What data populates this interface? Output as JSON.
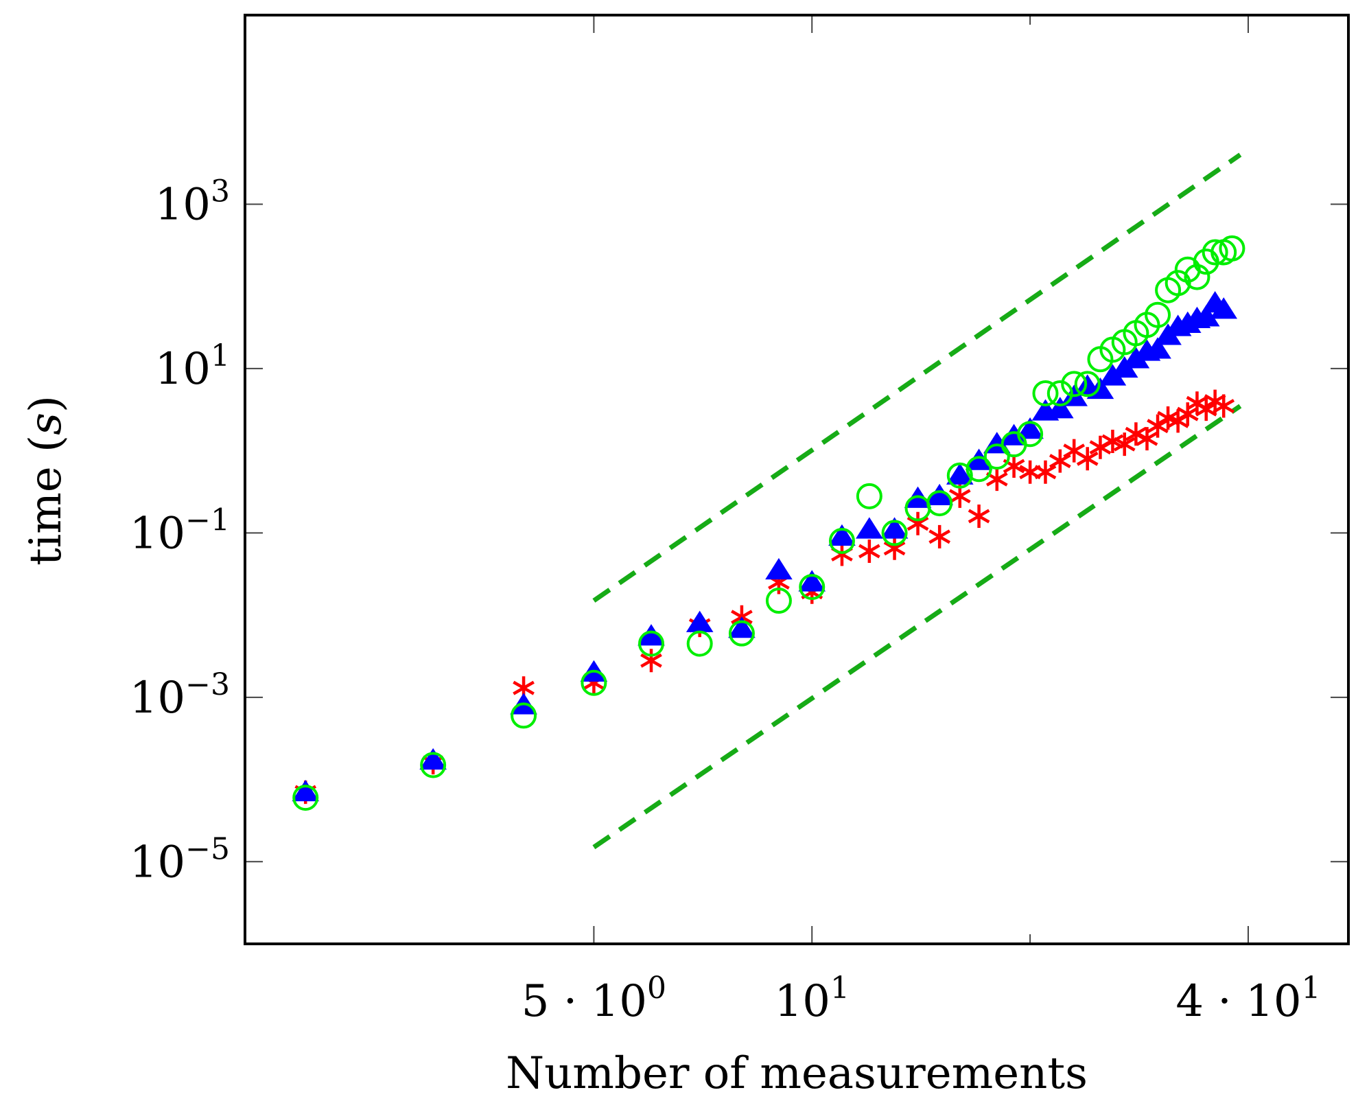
{
  "chart_data": {
    "type": "scatter",
    "title": "",
    "xlabel": "Number of measurements",
    "ylabel_main": "time (",
    "ylabel_var": "s",
    "ylabel_close": ")",
    "x_scale": "log",
    "y_scale": "log",
    "xlim": [
      1.65,
      55
    ],
    "ylim": [
      1e-06,
      200000
    ],
    "grid": false,
    "x_ticks": [
      {
        "value": 5,
        "mantissa": "5 · ",
        "base": "10",
        "exp": "0"
      },
      {
        "value": 10,
        "mantissa": "",
        "base": "10",
        "exp": "1"
      },
      {
        "value": 40,
        "mantissa": "4 · ",
        "base": "10",
        "exp": "1"
      }
    ],
    "y_ticks": [
      {
        "value": 1e-05,
        "base": "10",
        "exp": "−5"
      },
      {
        "value": 0.001,
        "base": "10",
        "exp": "−3"
      },
      {
        "value": 0.1,
        "base": "10",
        "exp": "−1"
      },
      {
        "value": 10,
        "base": "10",
        "exp": "1"
      },
      {
        "value": 1000,
        "base": "10",
        "exp": "3"
      }
    ],
    "minor_x_ticks": [
      20
    ],
    "series": [
      {
        "name": "red-stars",
        "marker": "star",
        "color": "#ff0000",
        "points": [
          [
            2,
            7e-05
          ],
          [
            3,
            0.00016
          ],
          [
            4,
            0.0013
          ],
          [
            5,
            0.0015
          ],
          [
            6,
            0.0028
          ],
          [
            7,
            0.0075
          ],
          [
            8,
            0.0095
          ],
          [
            9,
            0.025
          ],
          [
            10,
            0.019
          ],
          [
            11,
            0.055
          ],
          [
            12,
            0.06
          ],
          [
            13,
            0.065
          ],
          [
            14,
            0.13
          ],
          [
            15,
            0.09
          ],
          [
            16,
            0.28
          ],
          [
            17,
            0.16
          ],
          [
            18,
            0.45
          ],
          [
            19,
            0.65
          ],
          [
            20,
            0.55
          ],
          [
            21,
            0.55
          ],
          [
            22,
            0.75
          ],
          [
            23,
            1.0
          ],
          [
            24,
            0.8
          ],
          [
            25,
            1.1
          ],
          [
            26,
            1.3
          ],
          [
            27,
            1.2
          ],
          [
            28,
            1.6
          ],
          [
            29,
            1.4
          ],
          [
            30,
            2.0
          ],
          [
            31,
            2.5
          ],
          [
            32,
            2.3
          ],
          [
            33,
            2.8
          ],
          [
            34,
            3.8
          ],
          [
            35,
            3.2
          ],
          [
            36,
            4.0
          ],
          [
            37,
            3.5
          ]
        ]
      },
      {
        "name": "blue-triangles",
        "marker": "triangle",
        "color": "#0000ff",
        "points": [
          [
            2,
            7e-05
          ],
          [
            3,
            0.00017
          ],
          [
            4,
            0.0008
          ],
          [
            5,
            0.002
          ],
          [
            6,
            0.0055
          ],
          [
            7,
            0.008
          ],
          [
            8,
            0.0068
          ],
          [
            9,
            0.035
          ],
          [
            10,
            0.025
          ],
          [
            11,
            0.09
          ],
          [
            12,
            0.11
          ],
          [
            13,
            0.11
          ],
          [
            14,
            0.26
          ],
          [
            15,
            0.28
          ],
          [
            16,
            0.5
          ],
          [
            17,
            0.75
          ],
          [
            18,
            1.2
          ],
          [
            19,
            1.5
          ],
          [
            20,
            1.8
          ],
          [
            21,
            3.0
          ],
          [
            22,
            3.2
          ],
          [
            23,
            4.5
          ],
          [
            24,
            6.0
          ],
          [
            25,
            5.5
          ],
          [
            26,
            8.0
          ],
          [
            27,
            10
          ],
          [
            28,
            13
          ],
          [
            29,
            16
          ],
          [
            30,
            17
          ],
          [
            31,
            25
          ],
          [
            32,
            32
          ],
          [
            33,
            35
          ],
          [
            34,
            40
          ],
          [
            35,
            42
          ],
          [
            36,
            62
          ],
          [
            37,
            52
          ]
        ]
      },
      {
        "name": "green-circles",
        "marker": "circle",
        "color": "#00ee00",
        "points": [
          [
            2,
            6e-05
          ],
          [
            3,
            0.00015
          ],
          [
            4,
            0.0006
          ],
          [
            5,
            0.0015
          ],
          [
            6,
            0.0045
          ],
          [
            7,
            0.0045
          ],
          [
            8,
            0.006
          ],
          [
            9,
            0.015
          ],
          [
            10,
            0.022
          ],
          [
            11,
            0.08
          ],
          [
            12,
            0.28
          ],
          [
            13,
            0.1
          ],
          [
            14,
            0.2
          ],
          [
            15,
            0.23
          ],
          [
            16,
            0.5
          ],
          [
            17,
            0.6
          ],
          [
            18,
            0.85
          ],
          [
            19,
            1.2
          ],
          [
            20,
            1.6
          ],
          [
            21,
            5.0
          ],
          [
            22,
            5.0
          ],
          [
            23,
            6.5
          ],
          [
            24,
            6.5
          ],
          [
            25,
            13
          ],
          [
            26,
            17
          ],
          [
            27,
            21
          ],
          [
            28,
            27
          ],
          [
            29,
            34
          ],
          [
            30,
            45
          ],
          [
            31,
            90
          ],
          [
            32,
            110
          ],
          [
            33,
            160
          ],
          [
            34,
            130
          ],
          [
            35,
            200
          ],
          [
            36,
            260
          ],
          [
            37,
            260
          ],
          [
            38,
            290
          ]
        ]
      }
    ],
    "reference_lines": [
      {
        "name": "upper-reference-line",
        "color": "#16ab16",
        "from": [
          5,
          0.015
        ],
        "to": [
          39,
          4000
        ]
      },
      {
        "name": "lower-reference-line",
        "color": "#16ab16",
        "from": [
          5,
          1.5e-05
        ],
        "to": [
          39,
          3.5
        ]
      }
    ]
  }
}
